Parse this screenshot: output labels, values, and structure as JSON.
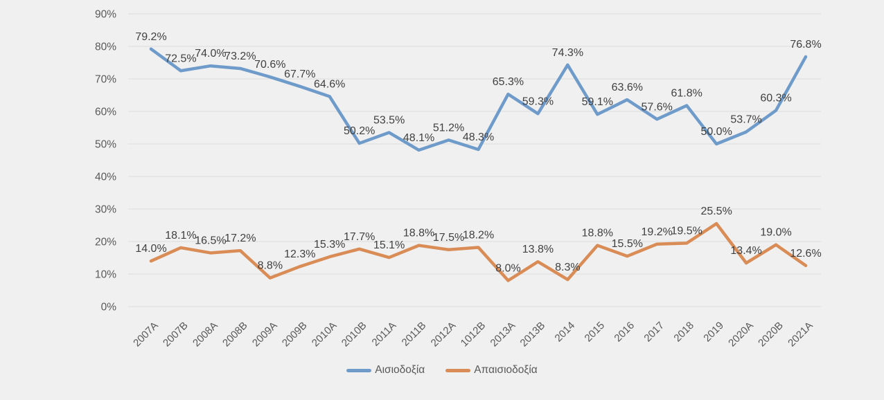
{
  "chart_data": {
    "type": "line",
    "title": "",
    "xlabel": "",
    "ylabel": "",
    "categories": [
      "2007A",
      "2007B",
      "2008A",
      "2008B",
      "2009A",
      "2009B",
      "2010A",
      "2010B",
      "2011A",
      "2011B",
      "2012A",
      "1012B",
      "2013A",
      "2013B",
      "2014",
      "2015",
      "2016",
      "2017",
      "2018",
      "2019",
      "2020A",
      "2020B",
      "2021A"
    ],
    "series": [
      {
        "name": "Αισιοδοξία",
        "color": "#6f9bcb",
        "values": [
          79.2,
          72.5,
          74.0,
          73.2,
          70.6,
          67.7,
          64.6,
          50.2,
          53.5,
          48.1,
          51.2,
          48.3,
          65.3,
          59.3,
          74.3,
          59.1,
          63.6,
          57.6,
          61.8,
          50.0,
          53.7,
          60.3,
          76.8
        ]
      },
      {
        "name": "Απαισιοδοξία",
        "color": "#d98c55",
        "values": [
          14.0,
          18.1,
          16.5,
          17.2,
          8.8,
          12.3,
          15.3,
          17.7,
          15.1,
          18.8,
          17.5,
          18.2,
          8.0,
          13.8,
          8.3,
          18.8,
          15.5,
          19.2,
          19.5,
          25.5,
          13.4,
          19.0,
          12.6
        ]
      }
    ],
    "ylim": [
      0,
      90
    ],
    "ytick_step": 10,
    "ytick_suffix": "%",
    "ytick_labels": [
      "0%",
      "10%",
      "20%",
      "30%",
      "40%",
      "50%",
      "60%",
      "70%",
      "80%",
      "90%"
    ],
    "grid": true,
    "legend_position": "bottom",
    "data_labels": true,
    "data_label_decimals": 1,
    "data_label_suffix": "%"
  },
  "style": {
    "background": "#f0f0f1",
    "gridline_color": "#dcdcdc",
    "axis_text_color": "#595959",
    "data_label_color": "#404040",
    "line_width": 4.5
  }
}
